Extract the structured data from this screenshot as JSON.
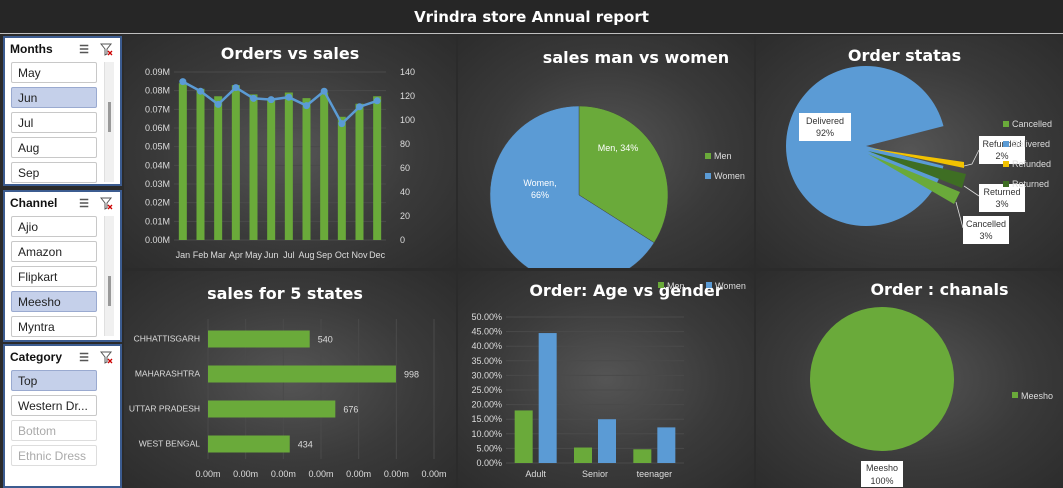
{
  "app_title": "Vrindra store Annual report",
  "slicers": {
    "months": {
      "title": "Months",
      "items": [
        "May",
        "Jun",
        "Jul",
        "Aug",
        "Sep"
      ],
      "selected": [
        1
      ]
    },
    "channel": {
      "title": "Channel",
      "items": [
        "Ajio",
        "Amazon",
        "Flipkart",
        "Meesho",
        "Myntra"
      ],
      "selected": [
        3
      ]
    },
    "category": {
      "title": "Category",
      "items": [
        "Top",
        "Western Dr...",
        "Bottom",
        "Ethnic Dress"
      ],
      "selected": [
        0
      ],
      "dimmed": [
        2,
        3
      ]
    }
  },
  "colors": {
    "green": "#6aaa3a",
    "blue": "#5b9bd5",
    "yellow": "#f2c200",
    "dark_green": "#3e6e23",
    "slicer_selected": "#c5d0ea"
  },
  "chart_data": [
    {
      "id": "orders_vs_sales",
      "type": "bar",
      "title": "Orders vs sales",
      "categories": [
        "Jan",
        "Feb",
        "Mar",
        "Apr",
        "May",
        "Jun",
        "Jul",
        "Aug",
        "Sep",
        "Oct",
        "Nov",
        "Dec"
      ],
      "series": [
        {
          "axis": "left",
          "type": "bar",
          "values": [
            0.084,
            0.081,
            0.077,
            0.083,
            0.078,
            0.076,
            0.079,
            0.076,
            0.079,
            0.066,
            0.073,
            0.077
          ]
        },
        {
          "axis": "right",
          "type": "line",
          "values": [
            132,
            124,
            113,
            127,
            118,
            117,
            119,
            112,
            124,
            97,
            111,
            116
          ]
        }
      ],
      "y_ticks": [
        "0.00M",
        "0.01M",
        "0.02M",
        "0.03M",
        "0.04M",
        "0.05M",
        "0.06M",
        "0.07M",
        "0.08M",
        "0.09M"
      ],
      "ylim": [
        0,
        0.09
      ],
      "y2_ticks": [
        "0",
        "20",
        "40",
        "60",
        "80",
        "100",
        "120",
        "140"
      ],
      "y2lim": [
        0,
        140
      ]
    },
    {
      "id": "sales_men_women",
      "type": "pie",
      "title": "sales man vs women",
      "slices": [
        {
          "label": "Men",
          "value": 34,
          "text": "Men, 34%"
        },
        {
          "label": "Women",
          "value": 66,
          "text": "Women, 66%"
        }
      ],
      "legend": [
        "Men",
        "Women"
      ],
      "legend_position": "right"
    },
    {
      "id": "order_status",
      "type": "pie",
      "title": "Order statas",
      "slices": [
        {
          "label": "Delivered",
          "value": 92,
          "text": "92%"
        },
        {
          "label": "Refunded",
          "value": 2,
          "text": "2%"
        },
        {
          "label": "Returned",
          "value": 3,
          "text": "3%"
        },
        {
          "label": "Cancelled",
          "value": 3,
          "text": "3%"
        }
      ],
      "legend": [
        "Cancelled",
        "Delivered",
        "Refunded",
        "Returned"
      ],
      "legend_position": "right"
    },
    {
      "id": "sales_5_states",
      "type": "bar",
      "orientation": "horizontal",
      "title": "sales for 5 states",
      "categories": [
        "CHHATTISGARH",
        "MAHARASHTRA",
        "UTTAR PRADESH",
        "WEST BENGAL"
      ],
      "values": [
        540,
        998,
        676,
        434
      ],
      "x_ticks": [
        "0.00m",
        "0.00m",
        "0.00m",
        "0.00m",
        "0.00m",
        "0.00m",
        "0.00m"
      ],
      "xlim": [
        0,
        1200
      ]
    },
    {
      "id": "age_vs_gender",
      "type": "bar",
      "title": "Order: Age vs gender",
      "categories": [
        "Adult",
        "Senior",
        "teenager"
      ],
      "series": [
        {
          "name": "Men",
          "values": [
            18.0,
            5.3,
            4.7
          ]
        },
        {
          "name": "Women",
          "values": [
            44.5,
            15.0,
            12.2
          ]
        }
      ],
      "y_ticks": [
        "0.00%",
        "5.00%",
        "10.00%",
        "15.00%",
        "20.00%",
        "25.00%",
        "30.00%",
        "35.00%",
        "40.00%",
        "45.00%",
        "50.00%"
      ],
      "ylim": [
        0,
        50
      ],
      "legend_position": "top-right"
    },
    {
      "id": "order_channels",
      "type": "pie",
      "title": "Order : chanals",
      "slices": [
        {
          "label": "Meesho",
          "value": 100,
          "text": "100%"
        }
      ],
      "legend": [
        "Meesho"
      ],
      "legend_position": "right"
    }
  ]
}
